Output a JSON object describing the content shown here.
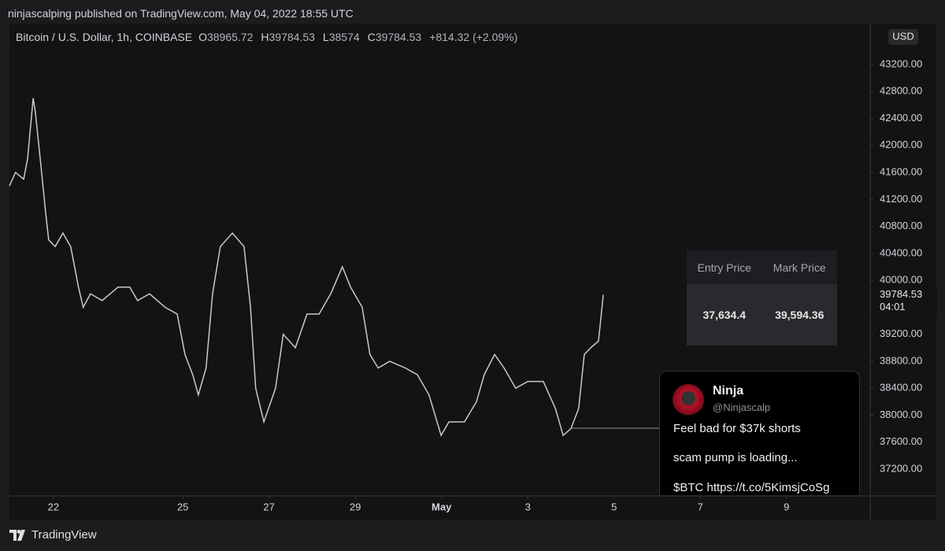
{
  "header": {
    "text": "ninjascalping published on TradingView.com, May 04, 2022 18:55 UTC"
  },
  "chart_data": {
    "type": "line",
    "legend_text": "Bitcoin / U.S. Dollar, 1h, COINBASE",
    "ohlc": [
      {
        "label": "O",
        "value": 38965.72
      },
      {
        "label": "H",
        "value": 39784.53
      },
      {
        "label": "L",
        "value": 38574.0
      },
      {
        "label": "C",
        "value": 39784.53
      }
    ],
    "change": "+814.32 (+2.09%)",
    "currency": "USD",
    "countdown": "04:01",
    "x": [
      20.98,
      21.12,
      21.31,
      21.4,
      21.53,
      21.58,
      21.71,
      21.82,
      21.89,
      22.04,
      22.22,
      22.4,
      22.58,
      22.69,
      22.86,
      23.13,
      23.5,
      23.77,
      23.95,
      24.23,
      24.59,
      24.87,
      25.05,
      25.23,
      25.36,
      25.54,
      25.69,
      25.87,
      26.15,
      26.42,
      26.57,
      26.69,
      26.88,
      27.15,
      27.33,
      27.61,
      27.88,
      28.16,
      28.43,
      28.7,
      28.89,
      29.16,
      29.34,
      29.53,
      29.8,
      30.16,
      30.44,
      30.71,
      30.99,
      31.17,
      31.53,
      31.81,
      31.99,
      32.23,
      32.45,
      32.72,
      33.0,
      33.36,
      33.64,
      33.82,
      34.0,
      34.18,
      34.31,
      34.46,
      34.64,
      34.75
    ],
    "series": [
      {
        "color": "#c8cad0",
        "values": [
          41400,
          41600,
          41500,
          41800,
          42700,
          42500,
          41700,
          41000,
          40600,
          40500,
          40700,
          40500,
          39900,
          39600,
          39800,
          39700,
          39900,
          39900,
          39700,
          39800,
          39600,
          39500,
          38900,
          38600,
          38300,
          38700,
          39800,
          40500,
          40700,
          40500,
          39600,
          38400,
          37900,
          38400,
          39200,
          39000,
          39500,
          39500,
          39800,
          40200,
          39900,
          39600,
          38900,
          38700,
          38800,
          38700,
          38600,
          38300,
          37700,
          37900,
          37900,
          38200,
          38600,
          38900,
          38700,
          38400,
          38500,
          38500,
          38100,
          37700,
          37800,
          38100,
          38900,
          39000,
          39100,
          39784.53
        ]
      }
    ],
    "xlim": [
      20.98,
      40.94
    ],
    "xticks": [
      22,
      25,
      27,
      29,
      {
        "value": 31,
        "label": "May"
      },
      {
        "value": 33,
        "label": "3"
      },
      {
        "value": 35,
        "label": "5"
      },
      {
        "value": 37,
        "label": "7"
      },
      {
        "value": 39,
        "label": "9"
      }
    ],
    "ylim": [
      36803,
      43807
    ],
    "yticks": [
      {
        "value": 37200,
        "label": "37200.00"
      },
      {
        "value": 37600,
        "label": "37600.00"
      },
      {
        "value": 38000,
        "label": "38000.00"
      },
      {
        "value": 38400,
        "label": "38400.00"
      },
      {
        "value": 38800,
        "label": "38800.00"
      },
      {
        "value": 39200,
        "label": "39200.00"
      },
      {
        "value": 40000,
        "label": "40000.00"
      },
      {
        "value": 40400,
        "label": "40400.00"
      },
      {
        "value": 40800,
        "label": "40800.00"
      },
      {
        "value": 41200,
        "label": "41200.00"
      },
      {
        "value": 41600,
        "label": "41600.00"
      },
      {
        "value": 42000,
        "label": "42000.00"
      },
      {
        "value": 42400,
        "label": "42400.00"
      },
      {
        "value": 42800,
        "label": "42800.00"
      },
      {
        "value": 43200,
        "label": "43200.00"
      }
    ]
  },
  "position_panel": {
    "headers": [
      "Entry Price",
      "Mark Price"
    ],
    "values": [
      "37,634.4",
      "39,594.36"
    ]
  },
  "tweet": {
    "name": "Ninja",
    "handle": "@Ninjascalp",
    "lines": [
      "Feel bad for $37k shorts",
      "scam pump is loading...",
      "$BTC https://t.co/5KimsjCoSg"
    ]
  },
  "footer": {
    "brand": "TradingView"
  }
}
